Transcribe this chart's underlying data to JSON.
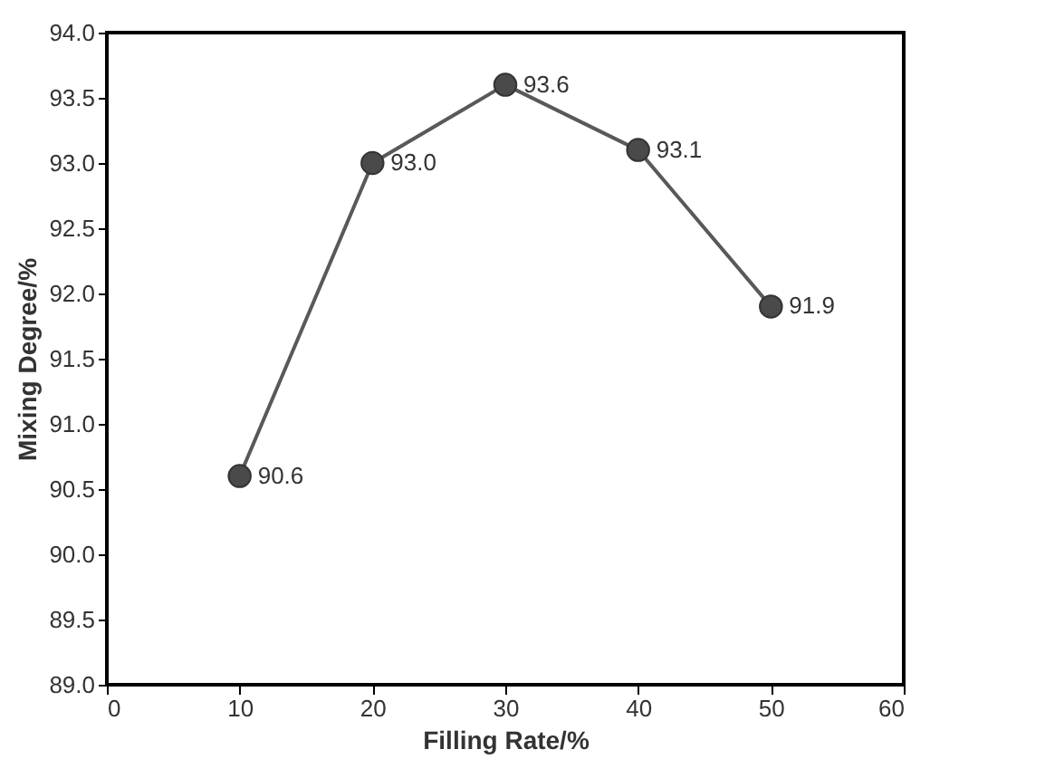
{
  "chart_data": {
    "type": "line",
    "xlabel": "Filling Rate/%",
    "ylabel": "Mixing Degree/%",
    "x": [
      10,
      20,
      30,
      40,
      50
    ],
    "series": [
      {
        "color": "#595959",
        "values": [
          90.6,
          93.0,
          93.6,
          93.1,
          91.9
        ],
        "value_labels": [
          "90.6",
          "93.0",
          "93.6",
          "93.1",
          "91.9"
        ]
      }
    ],
    "xlim": [
      0,
      60
    ],
    "xticks": [
      0,
      10,
      20,
      30,
      40,
      50,
      60
    ],
    "ylim": [
      89.0,
      94.0
    ],
    "yticks": [
      {
        "value": 89.0,
        "label": "89.0"
      },
      {
        "value": 89.5,
        "label": "89.5"
      },
      {
        "value": 90.0,
        "label": "90.0"
      },
      {
        "value": 90.5,
        "label": "90.5"
      },
      {
        "value": 91.0,
        "label": "91.0"
      },
      {
        "value": 91.5,
        "label": "91.5"
      },
      {
        "value": 92.0,
        "label": "92.0"
      },
      {
        "value": 92.5,
        "label": "92.5"
      },
      {
        "value": 93.0,
        "label": "93.0"
      },
      {
        "value": 93.5,
        "label": "93.5"
      },
      {
        "value": 94.0,
        "label": "94.0"
      }
    ],
    "marker": "circle",
    "line_style": "solid",
    "grid": false
  }
}
